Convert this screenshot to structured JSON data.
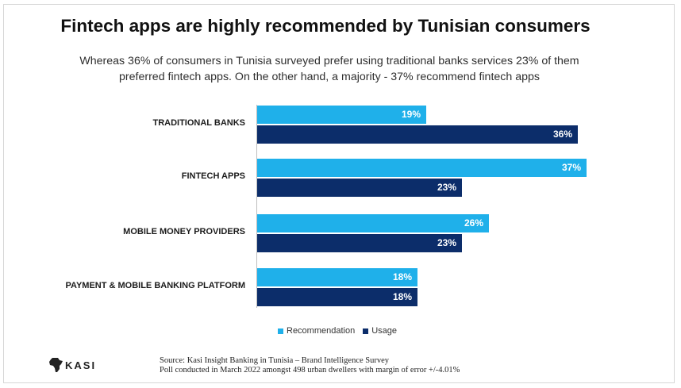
{
  "title": "Fintech apps are highly recommended by Tunisian consumers",
  "subtitle_line1": "Whereas 36% of consumers in Tunisia surveyed prefer using traditional banks services 23% of them",
  "subtitle_line2": "preferred fintech apps. On the other hand, a majority - 37% recommend fintech apps",
  "chart_data": {
    "type": "bar",
    "orientation": "horizontal",
    "categories": [
      "TRADITIONAL BANKS",
      "FINTECH APPS",
      "MOBILE MONEY PROVIDERS",
      "PAYMENT & MOBILE BANKING PLATFORM"
    ],
    "series": [
      {
        "name": "Recommendation",
        "values": [
          19,
          37,
          26,
          18
        ],
        "labels": [
          "19%",
          "37%",
          "26%",
          "18%"
        ],
        "color": "#1fb0ea"
      },
      {
        "name": "Usage",
        "values": [
          36,
          23,
          23,
          18
        ],
        "labels": [
          "36%",
          "23%",
          "23%",
          "18%"
        ],
        "color": "#0c2d6a"
      }
    ],
    "xlim": [
      0,
      40
    ],
    "legend_position": "bottom",
    "grid": false
  },
  "logo_text": "KASI",
  "source_line1": "Source: Kasi Insight Banking in Tunisia – Brand Intelligence Survey",
  "source_line2": "Poll conducted in March 2022 amongst 498 urban dwellers with margin of error +/-4.01%"
}
